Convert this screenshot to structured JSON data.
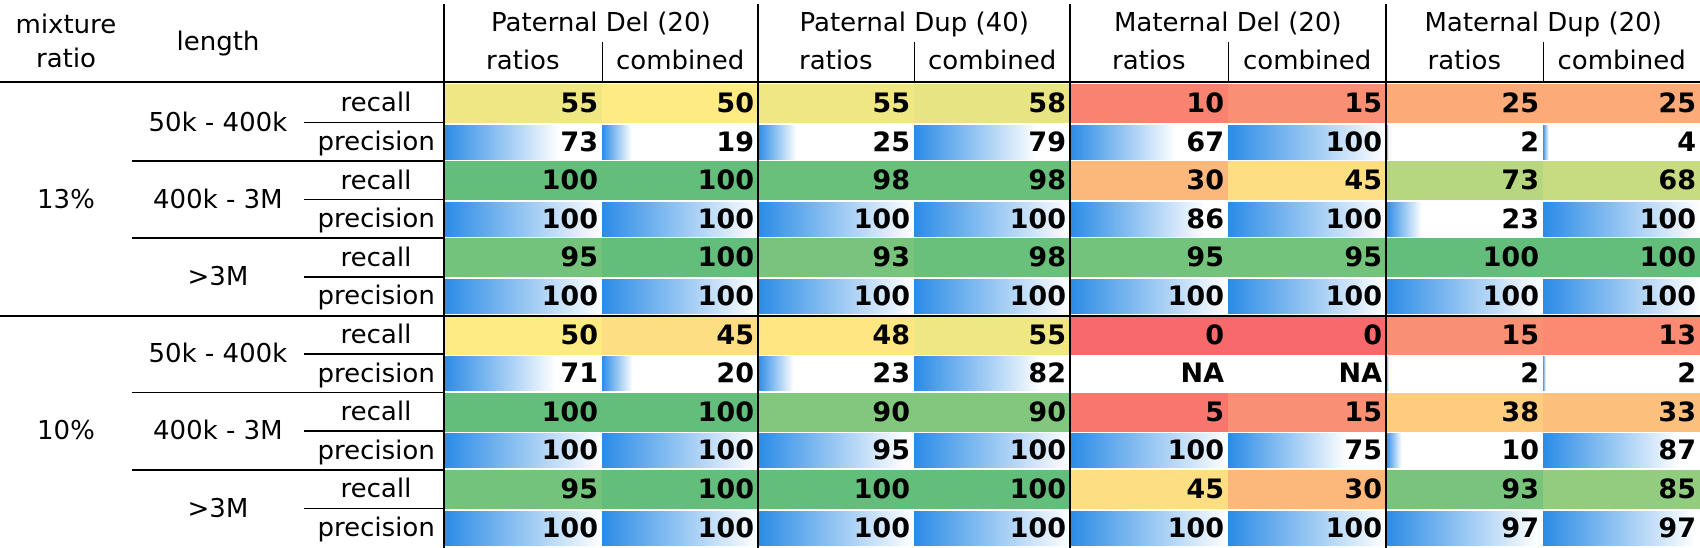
{
  "chart_data": {
    "type": "table",
    "header": {
      "mixture_ratio": "mixture ratio",
      "length": "length",
      "groups": [
        {
          "name": "Paternal Del (20)",
          "sub": [
            "ratios",
            "combined"
          ]
        },
        {
          "name": "Paternal Dup (40)",
          "sub": [
            "ratios",
            "combined"
          ]
        },
        {
          "name": "Maternal Del (20)",
          "sub": [
            "ratios",
            "combined"
          ]
        },
        {
          "name": "Maternal Dup (20)",
          "sub": [
            "ratios",
            "combined"
          ]
        }
      ]
    },
    "mixture_ratios": [
      "13%",
      "10%"
    ],
    "lengths": [
      "50k - 400k",
      "400k - 3M",
      ">3M"
    ],
    "metrics": [
      "recall",
      "precision"
    ],
    "colors": {
      "recall_scale": [
        "#f8696b",
        "#ffeb84",
        "#63be7b"
      ],
      "precision_bar_start": "#2a8be6",
      "precision_bar_end": "#ffffff"
    },
    "rows": [
      {
        "mixture_ratio": "13%",
        "length": "50k - 400k",
        "metric": "recall",
        "values": [
          "55",
          "50",
          "55",
          "58",
          "10",
          "15",
          "25",
          "25"
        ]
      },
      {
        "mixture_ratio": "13%",
        "length": "50k - 400k",
        "metric": "precision",
        "values": [
          "73",
          "19",
          "25",
          "79",
          "67",
          "100",
          "2",
          "4"
        ]
      },
      {
        "mixture_ratio": "13%",
        "length": "400k - 3M",
        "metric": "recall",
        "values": [
          "100",
          "100",
          "98",
          "98",
          "30",
          "45",
          "73",
          "68"
        ]
      },
      {
        "mixture_ratio": "13%",
        "length": "400k - 3M",
        "metric": "precision",
        "values": [
          "100",
          "100",
          "100",
          "100",
          "86",
          "100",
          "23",
          "100"
        ]
      },
      {
        "mixture_ratio": "13%",
        "length": ">3M",
        "metric": "recall",
        "values": [
          "95",
          "100",
          "93",
          "98",
          "95",
          "95",
          "100",
          "100"
        ]
      },
      {
        "mixture_ratio": "13%",
        "length": ">3M",
        "metric": "precision",
        "values": [
          "100",
          "100",
          "100",
          "100",
          "100",
          "100",
          "100",
          "100"
        ]
      },
      {
        "mixture_ratio": "10%",
        "length": "50k - 400k",
        "metric": "recall",
        "values": [
          "50",
          "45",
          "48",
          "55",
          "0",
          "0",
          "15",
          "13"
        ]
      },
      {
        "mixture_ratio": "10%",
        "length": "50k - 400k",
        "metric": "precision",
        "values": [
          "71",
          "20",
          "23",
          "82",
          "NA",
          "NA",
          "2",
          "2"
        ]
      },
      {
        "mixture_ratio": "10%",
        "length": "400k - 3M",
        "metric": "recall",
        "values": [
          "100",
          "100",
          "90",
          "90",
          "5",
          "15",
          "38",
          "33"
        ]
      },
      {
        "mixture_ratio": "10%",
        "length": "400k - 3M",
        "metric": "precision",
        "values": [
          "100",
          "100",
          "95",
          "100",
          "100",
          "75",
          "10",
          "87"
        ]
      },
      {
        "mixture_ratio": "10%",
        "length": ">3M",
        "metric": "recall",
        "values": [
          "95",
          "100",
          "100",
          "100",
          "45",
          "30",
          "93",
          "85"
        ]
      },
      {
        "mixture_ratio": "10%",
        "length": ">3M",
        "metric": "precision",
        "values": [
          "100",
          "100",
          "100",
          "100",
          "100",
          "100",
          "97",
          "97"
        ]
      }
    ]
  }
}
